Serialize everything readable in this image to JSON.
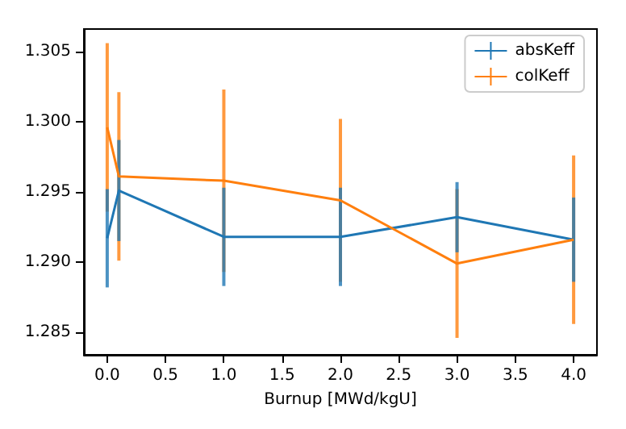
{
  "chart_data": {
    "type": "line",
    "xlabel": "Burnup [MWd/kgU]",
    "x": [
      0,
      0.1,
      1,
      2,
      3,
      4
    ],
    "series": [
      {
        "name": "absKeff",
        "color": "#1f77b4",
        "values": [
          1.2917,
          1.2951,
          1.2918,
          1.2918,
          1.2932,
          1.2916
        ],
        "errors": [
          0.0035,
          0.0036,
          0.0035,
          0.0035,
          0.0025,
          0.003
        ]
      },
      {
        "name": "colKeff",
        "color": "#ff7f0e",
        "values": [
          1.2996,
          1.2961,
          1.2958,
          1.2944,
          1.2899,
          1.2916
        ],
        "errors": [
          0.006,
          0.006,
          0.0065,
          0.0058,
          0.0053,
          0.006
        ]
      }
    ],
    "xlim": [
      -0.2,
      4.2
    ],
    "xticks": [
      {
        "value": 0,
        "label": "0.0"
      },
      {
        "value": 0.5,
        "label": "0.5"
      },
      {
        "value": 1,
        "label": "1.0"
      },
      {
        "value": 1.5,
        "label": "1.5"
      },
      {
        "value": 2,
        "label": "2.0"
      },
      {
        "value": 2.5,
        "label": "2.5"
      },
      {
        "value": 3,
        "label": "3.0"
      },
      {
        "value": 3.5,
        "label": "3.5"
      },
      {
        "value": 4,
        "label": "4.0"
      }
    ],
    "ylim": [
      1.2834,
      1.3066
    ],
    "yticks": [
      {
        "value": 1.285,
        "label": "1.285"
      },
      {
        "value": 1.29,
        "label": "1.290"
      },
      {
        "value": 1.295,
        "label": "1.295"
      },
      {
        "value": 1.3,
        "label": "1.300"
      },
      {
        "value": 1.305,
        "label": "1.305"
      }
    ],
    "legend": "top right",
    "grid": false,
    "marker": "none",
    "line_style": "solid"
  }
}
